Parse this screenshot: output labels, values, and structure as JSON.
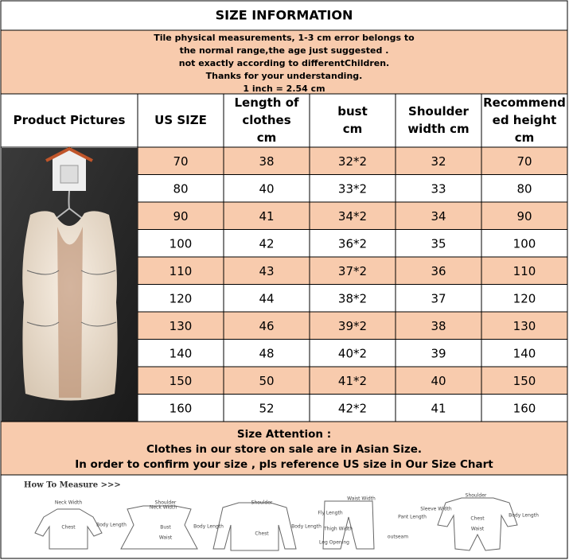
{
  "title": "SIZE INFORMATION",
  "notice": [
    "Tile physical measurements, 1-3 cm error belongs to",
    "the normal range,the age just suggested .",
    "not exactly according to differentChildren.",
    "Thanks for your understanding.",
    "1 inch = 2.54 cm"
  ],
  "table": {
    "header": [
      [
        "Product Pictures"
      ],
      [
        "US SIZE"
      ],
      [
        "Length of",
        "clothes",
        "cm"
      ],
      [
        "bust",
        "cm"
      ],
      [
        "Shoulder",
        "width cm"
      ],
      [
        "Recommend",
        "ed height",
        "cm"
      ]
    ],
    "rows": [
      [
        70,
        38,
        "32*2",
        32,
        70
      ],
      [
        80,
        40,
        "33*2",
        33,
        80
      ],
      [
        90,
        41,
        "34*2",
        34,
        90
      ],
      [
        100,
        42,
        "36*2",
        35,
        100
      ],
      [
        110,
        43,
        "37*2",
        36,
        110
      ],
      [
        120,
        44,
        "38*2",
        37,
        120
      ],
      [
        130,
        46,
        "39*2",
        38,
        130
      ],
      [
        140,
        48,
        "40*2",
        39,
        140
      ],
      [
        150,
        50,
        "41*2",
        40,
        150
      ],
      [
        160,
        52,
        "42*2",
        41,
        160
      ]
    ]
  },
  "attention": [
    "Size Attention :",
    "Clothes in our store on sale are in Asian Size.",
    "In order to confirm your size , pls reference US size in Our Size Chart"
  ],
  "measure": {
    "title": "How To Measure >>>",
    "labels": [
      "Neck Width",
      "Body Length",
      "Chest",
      "Shoulder",
      "Neck Width",
      "Bust",
      "Body Length",
      "Waist",
      "Shoulder",
      "Body Length",
      "Chest",
      "Waist Width",
      "Fly Length",
      "Pant Length",
      "Thigh Width",
      "outseam",
      "Leg Opening",
      "Shoulder",
      "Sleeve Width",
      "Body Length",
      "Chest",
      "Waist"
    ]
  }
}
